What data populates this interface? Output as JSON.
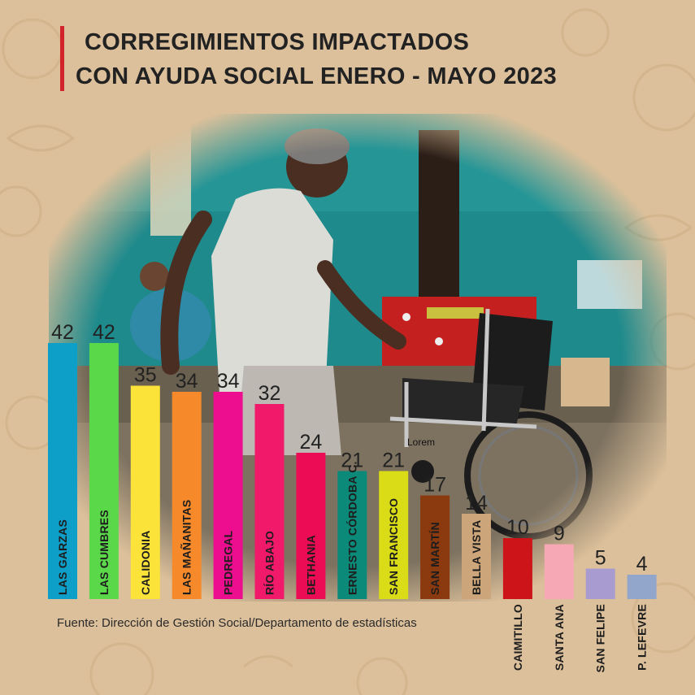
{
  "title": {
    "line1": "CORREGIMIENTOS IMPACTADOS",
    "line2": "CON AYUDA SOCIAL ENERO - MAYO 2023"
  },
  "source": "Fuente: Dirección de Gestión Social/Departamento de estadísticas",
  "photo_caption": "Lorem",
  "colors": {
    "background": "#dcc09b",
    "title_accent": "#d2232a"
  },
  "chart_data": {
    "type": "bar",
    "title": "CORREGIMIENTOS IMPACTADOS CON AYUDA SOCIAL ENERO - MAYO 2023",
    "categories": [
      "LAS GARZAS",
      "LAS CUMBRES",
      "CALIDONIA",
      "LAS MAÑANITAS",
      "PEDREGAL",
      "RÍO ABAJO",
      "BETHANIA",
      "ERNESTO CÓRDOBA C.",
      "SAN FRANCISCO",
      "SAN MARTÍN",
      "BELLA VISTA",
      "CAIMITILLO",
      "SANTA ANA",
      "SAN FELIPE",
      "P. LEFEVRE"
    ],
    "values": [
      42,
      42,
      35,
      34,
      34,
      32,
      24,
      21,
      21,
      17,
      14,
      10,
      9,
      5,
      4
    ],
    "colors": [
      "#0e9fc9",
      "#5bd84a",
      "#fbe33a",
      "#f68a2b",
      "#ec0e8e",
      "#f0196a",
      "#ec0b55",
      "#0c8a79",
      "#d9dc16",
      "#8a3a0e",
      "#cda57a",
      "#cc1419",
      "#f6a8b4",
      "#a89bcf",
      "#92a6cc"
    ],
    "xlabel": "",
    "ylabel": "",
    "ylim": [
      0,
      42
    ],
    "grid": false,
    "legend": "none"
  }
}
